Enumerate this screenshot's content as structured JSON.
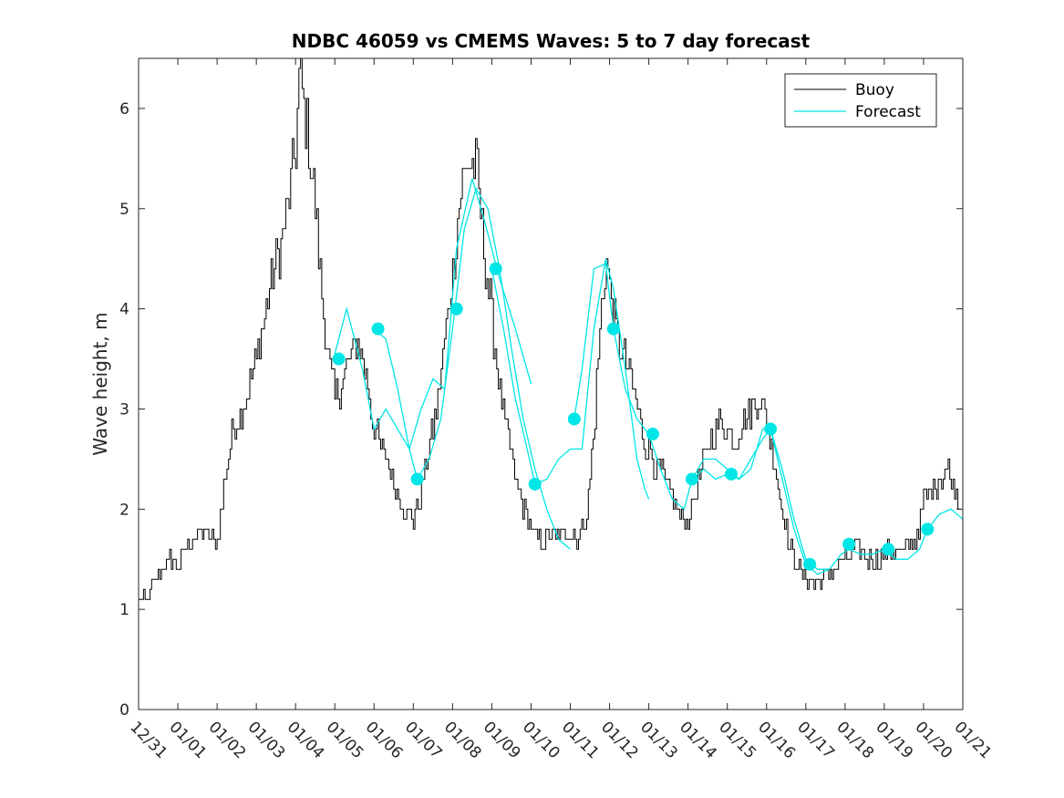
{
  "chart_data": {
    "type": "line",
    "title": "NDBC 46059 vs CMEMS Waves: 5 to 7 day forecast",
    "xlabel": "",
    "ylabel": "Wave height, m",
    "xlim": [
      "12/31",
      "01/21"
    ],
    "ylim": [
      0,
      6.5
    ],
    "yticks": [
      0,
      1,
      2,
      3,
      4,
      5,
      6
    ],
    "xticks": [
      "12/31",
      "01/01",
      "01/02",
      "01/03",
      "01/04",
      "01/05",
      "01/06",
      "01/07",
      "01/08",
      "01/09",
      "01/10",
      "01/11",
      "01/12",
      "01/13",
      "01/14",
      "01/15",
      "01/16",
      "01/17",
      "01/18",
      "01/19",
      "01/20",
      "01/21"
    ],
    "grid": false,
    "legend": {
      "position": "top-right",
      "entries": [
        "Buoy",
        "Forecast"
      ]
    },
    "colors": {
      "buoy": "#000000",
      "forecast": "#00e5e5"
    },
    "series": [
      {
        "name": "Buoy",
        "x_days_from_12_31": [
          0,
          0.2,
          0.4,
          0.6,
          0.8,
          1.0,
          1.2,
          1.4,
          1.6,
          1.8,
          2.0,
          2.2,
          2.4,
          2.6,
          2.8,
          3.0,
          3.2,
          3.4,
          3.6,
          3.8,
          4.0,
          4.1,
          4.2,
          4.3,
          4.4,
          4.5,
          4.6,
          4.8,
          5.0,
          5.2,
          5.4,
          5.6,
          5.8,
          6.0,
          6.2,
          6.4,
          6.6,
          6.8,
          7.0,
          7.2,
          7.4,
          7.6,
          7.8,
          8.0,
          8.2,
          8.4,
          8.6,
          8.8,
          9.0,
          9.2,
          9.4,
          9.6,
          9.8,
          10.0,
          10.2,
          10.4,
          10.6,
          10.8,
          11.0,
          11.2,
          11.4,
          11.6,
          11.8,
          11.9,
          12.0,
          12.2,
          12.4,
          12.6,
          12.8,
          13.0,
          13.2,
          13.4,
          13.6,
          13.8,
          14.0,
          14.2,
          14.4,
          14.6,
          14.8,
          15.0,
          15.2,
          15.4,
          15.6,
          15.8,
          16.0,
          16.2,
          16.4,
          16.6,
          16.8,
          17.0,
          17.2,
          17.4,
          17.6,
          17.8,
          18.0,
          18.2,
          18.4,
          18.6,
          18.8,
          19.0,
          19.2,
          19.4,
          19.6,
          19.8,
          20.0,
          20.2,
          20.4,
          20.6,
          20.8,
          21.0
        ],
        "values": [
          1.1,
          1.1,
          1.3,
          1.4,
          1.5,
          1.4,
          1.6,
          1.7,
          1.8,
          1.7,
          1.7,
          2.3,
          2.8,
          3.0,
          3.2,
          3.5,
          3.9,
          4.3,
          4.6,
          5.0,
          5.6,
          6.4,
          6.0,
          5.8,
          5.4,
          5.0,
          4.4,
          3.6,
          3.1,
          3.3,
          3.5,
          3.7,
          3.3,
          2.8,
          2.6,
          2.4,
          2.1,
          2.0,
          1.9,
          2.2,
          2.6,
          3.0,
          3.7,
          4.4,
          5.2,
          5.5,
          5.4,
          4.6,
          3.9,
          3.2,
          2.7,
          2.3,
          2.0,
          1.8,
          1.7,
          1.7,
          1.7,
          1.75,
          1.8,
          1.7,
          1.9,
          2.8,
          4.1,
          4.5,
          4.2,
          3.7,
          3.5,
          3.2,
          2.8,
          2.6,
          2.4,
          2.3,
          2.1,
          1.9,
          1.9,
          2.2,
          2.5,
          2.7,
          2.9,
          2.8,
          2.7,
          2.9,
          3.0,
          3.1,
          2.9,
          2.5,
          2.0,
          1.6,
          1.4,
          1.3,
          1.25,
          1.3,
          1.35,
          1.45,
          1.5,
          1.6,
          1.55,
          1.5,
          1.5,
          1.55,
          1.6,
          1.6,
          1.6,
          1.7,
          2.1,
          2.2,
          2.3,
          2.4,
          2.2,
          2.0
        ]
      },
      {
        "name": "Forecast",
        "segments": [
          {
            "x_days_from_12_31": [
              5.0,
              5.3,
              5.7,
              6.0,
              6.3,
              6.6,
              6.9,
              7.2,
              7.5,
              7.8,
              8.1,
              8.5,
              8.8,
              9.2,
              9.6,
              10.0
            ],
            "values": [
              3.55,
              4.0,
              3.4,
              2.8,
              3.0,
              2.8,
              2.6,
              3.0,
              3.3,
              3.2,
              4.6,
              5.3,
              4.9,
              4.3,
              3.8,
              3.25
            ]
          },
          {
            "x_days_from_12_31": [
              6.0,
              6.3,
              6.6,
              6.9,
              7.1,
              7.4,
              7.7,
              8.0,
              8.3,
              8.6,
              8.9,
              9.2,
              9.5,
              9.8,
              10.1,
              10.4,
              10.7,
              11.0
            ],
            "values": [
              3.8,
              3.7,
              3.2,
              2.6,
              2.3,
              2.5,
              2.9,
              3.8,
              4.8,
              5.2,
              5.0,
              4.4,
              3.6,
              2.9,
              2.4,
              2.0,
              1.7,
              1.6
            ]
          },
          {
            "x_days_from_12_31": [
              9.0,
              9.3,
              9.6,
              9.9,
              10.1,
              10.4,
              10.7,
              11.0,
              11.3,
              11.6,
              11.9,
              12.1,
              12.4,
              12.7,
              12.9,
              13.0
            ],
            "values": [
              4.4,
              3.8,
              3.1,
              2.6,
              2.25,
              2.3,
              2.5,
              2.6,
              2.6,
              3.8,
              4.5,
              4.2,
              3.4,
              2.5,
              2.2,
              2.1
            ]
          },
          {
            "x_days_from_12_31": [
              11.1,
              11.3,
              11.6,
              11.9,
              12.1,
              12.4,
              12.7,
              13.0,
              13.3,
              13.6,
              13.9,
              14.1,
              14.4,
              14.7,
              15.0,
              15.3,
              15.6,
              15.9,
              16.1,
              16.4,
              16.7,
              17.0,
              17.3,
              17.6
            ],
            "values": [
              2.9,
              3.4,
              4.4,
              4.45,
              3.8,
              3.2,
              2.9,
              2.75,
              2.4,
              2.1,
              2.0,
              2.3,
              2.5,
              2.5,
              2.4,
              2.3,
              2.4,
              2.8,
              2.8,
              2.3,
              1.8,
              1.45,
              1.35,
              1.4
            ]
          },
          {
            "x_days_from_12_31": [
              14.1,
              14.4,
              14.7,
              15.0,
              15.3,
              15.6,
              15.9,
              16.1,
              16.4,
              16.7,
              17.0,
              17.3,
              17.6,
              17.9,
              18.1,
              18.4,
              18.7,
              19.0,
              19.3,
              19.6,
              19.9,
              20.1,
              20.4,
              20.7,
              21.0
            ],
            "values": [
              2.3,
              2.4,
              2.3,
              2.35,
              2.3,
              2.5,
              2.7,
              2.8,
              2.4,
              1.9,
              1.5,
              1.4,
              1.4,
              1.55,
              1.6,
              1.55,
              1.55,
              1.6,
              1.5,
              1.5,
              1.6,
              1.8,
              1.95,
              2.0,
              1.9
            ]
          }
        ]
      }
    ],
    "forecast_markers": {
      "x_days_from_12_31": [
        5.1,
        6.1,
        7.1,
        8.1,
        9.1,
        10.1,
        11.1,
        12.1,
        13.1,
        14.1,
        15.1,
        16.1,
        17.1,
        18.1,
        19.1,
        20.1
      ],
      "values": [
        3.5,
        3.8,
        2.3,
        4.0,
        4.4,
        2.25,
        2.9,
        3.8,
        2.75,
        2.3,
        2.35,
        2.8,
        1.45,
        1.65,
        1.6,
        1.8
      ]
    }
  }
}
